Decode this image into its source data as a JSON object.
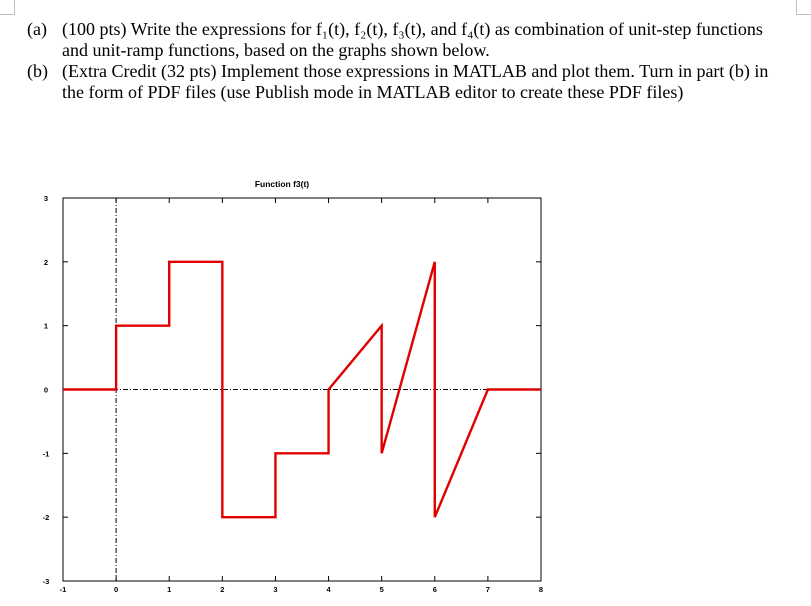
{
  "problem": {
    "part_a_label": "(a)",
    "part_a_text": "(100 pts) Write the expressions for f₁(t), f₂(t), f₃(t), and f₄(t) as combination of unit-step functions and unit-ramp functions, based on the graphs shown below.",
    "part_b_label": "(b)",
    "part_b_text": "(Extra Credit (32 pts) Implement those expressions in MATLAB and plot them. Turn in part (b) in the form of PDF files (use Publish mode in MATLAB editor to create these PDF files)"
  },
  "chart_data": {
    "type": "line",
    "title": "Function f3(t)",
    "xlabel": "",
    "ylabel": "",
    "xlim": [
      -1,
      8
    ],
    "ylim": [
      -3,
      3
    ],
    "x_ticks": [
      "-1",
      "0",
      "1",
      "2",
      "3",
      "4",
      "5",
      "6",
      "7",
      "8"
    ],
    "y_ticks": [
      "3",
      "2",
      "1",
      "0",
      "-1",
      "-2",
      "-3"
    ],
    "grid": false,
    "reference_lines": [
      "y=0",
      "x=0"
    ],
    "series": [
      {
        "color": "#e00000",
        "x": [
          -1,
          0,
          0,
          1,
          1,
          2,
          2,
          3,
          3,
          4,
          4,
          5,
          5,
          6,
          6,
          7,
          8
        ],
        "y": [
          0,
          0,
          1,
          1,
          2,
          2,
          -2,
          -2,
          -1,
          -1,
          0,
          1,
          -1,
          2,
          -2,
          0,
          0
        ]
      }
    ]
  }
}
